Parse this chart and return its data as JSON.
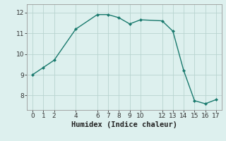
{
  "x": [
    0,
    1,
    2,
    4,
    6,
    7,
    8,
    9,
    10,
    12,
    13,
    14,
    15,
    16,
    17
  ],
  "y": [
    9.0,
    9.35,
    9.7,
    11.2,
    11.9,
    11.9,
    11.75,
    11.45,
    11.65,
    11.6,
    11.1,
    9.2,
    7.75,
    7.6,
    7.8
  ],
  "xlim": [
    -0.5,
    17.5
  ],
  "ylim": [
    7.3,
    12.4
  ],
  "xticks": [
    0,
    1,
    2,
    4,
    6,
    7,
    8,
    9,
    10,
    12,
    13,
    14,
    15,
    16,
    17
  ],
  "yticks": [
    8,
    9,
    10,
    11,
    12
  ],
  "xlabel": "Humidex (Indice chaleur)",
  "line_color": "#1a7a6e",
  "marker": "D",
  "marker_size": 2.0,
  "bg_color": "#ddf0ee",
  "grid_color": "#b8d4d0",
  "label_fontsize": 7.5,
  "tick_fontsize": 6.5
}
